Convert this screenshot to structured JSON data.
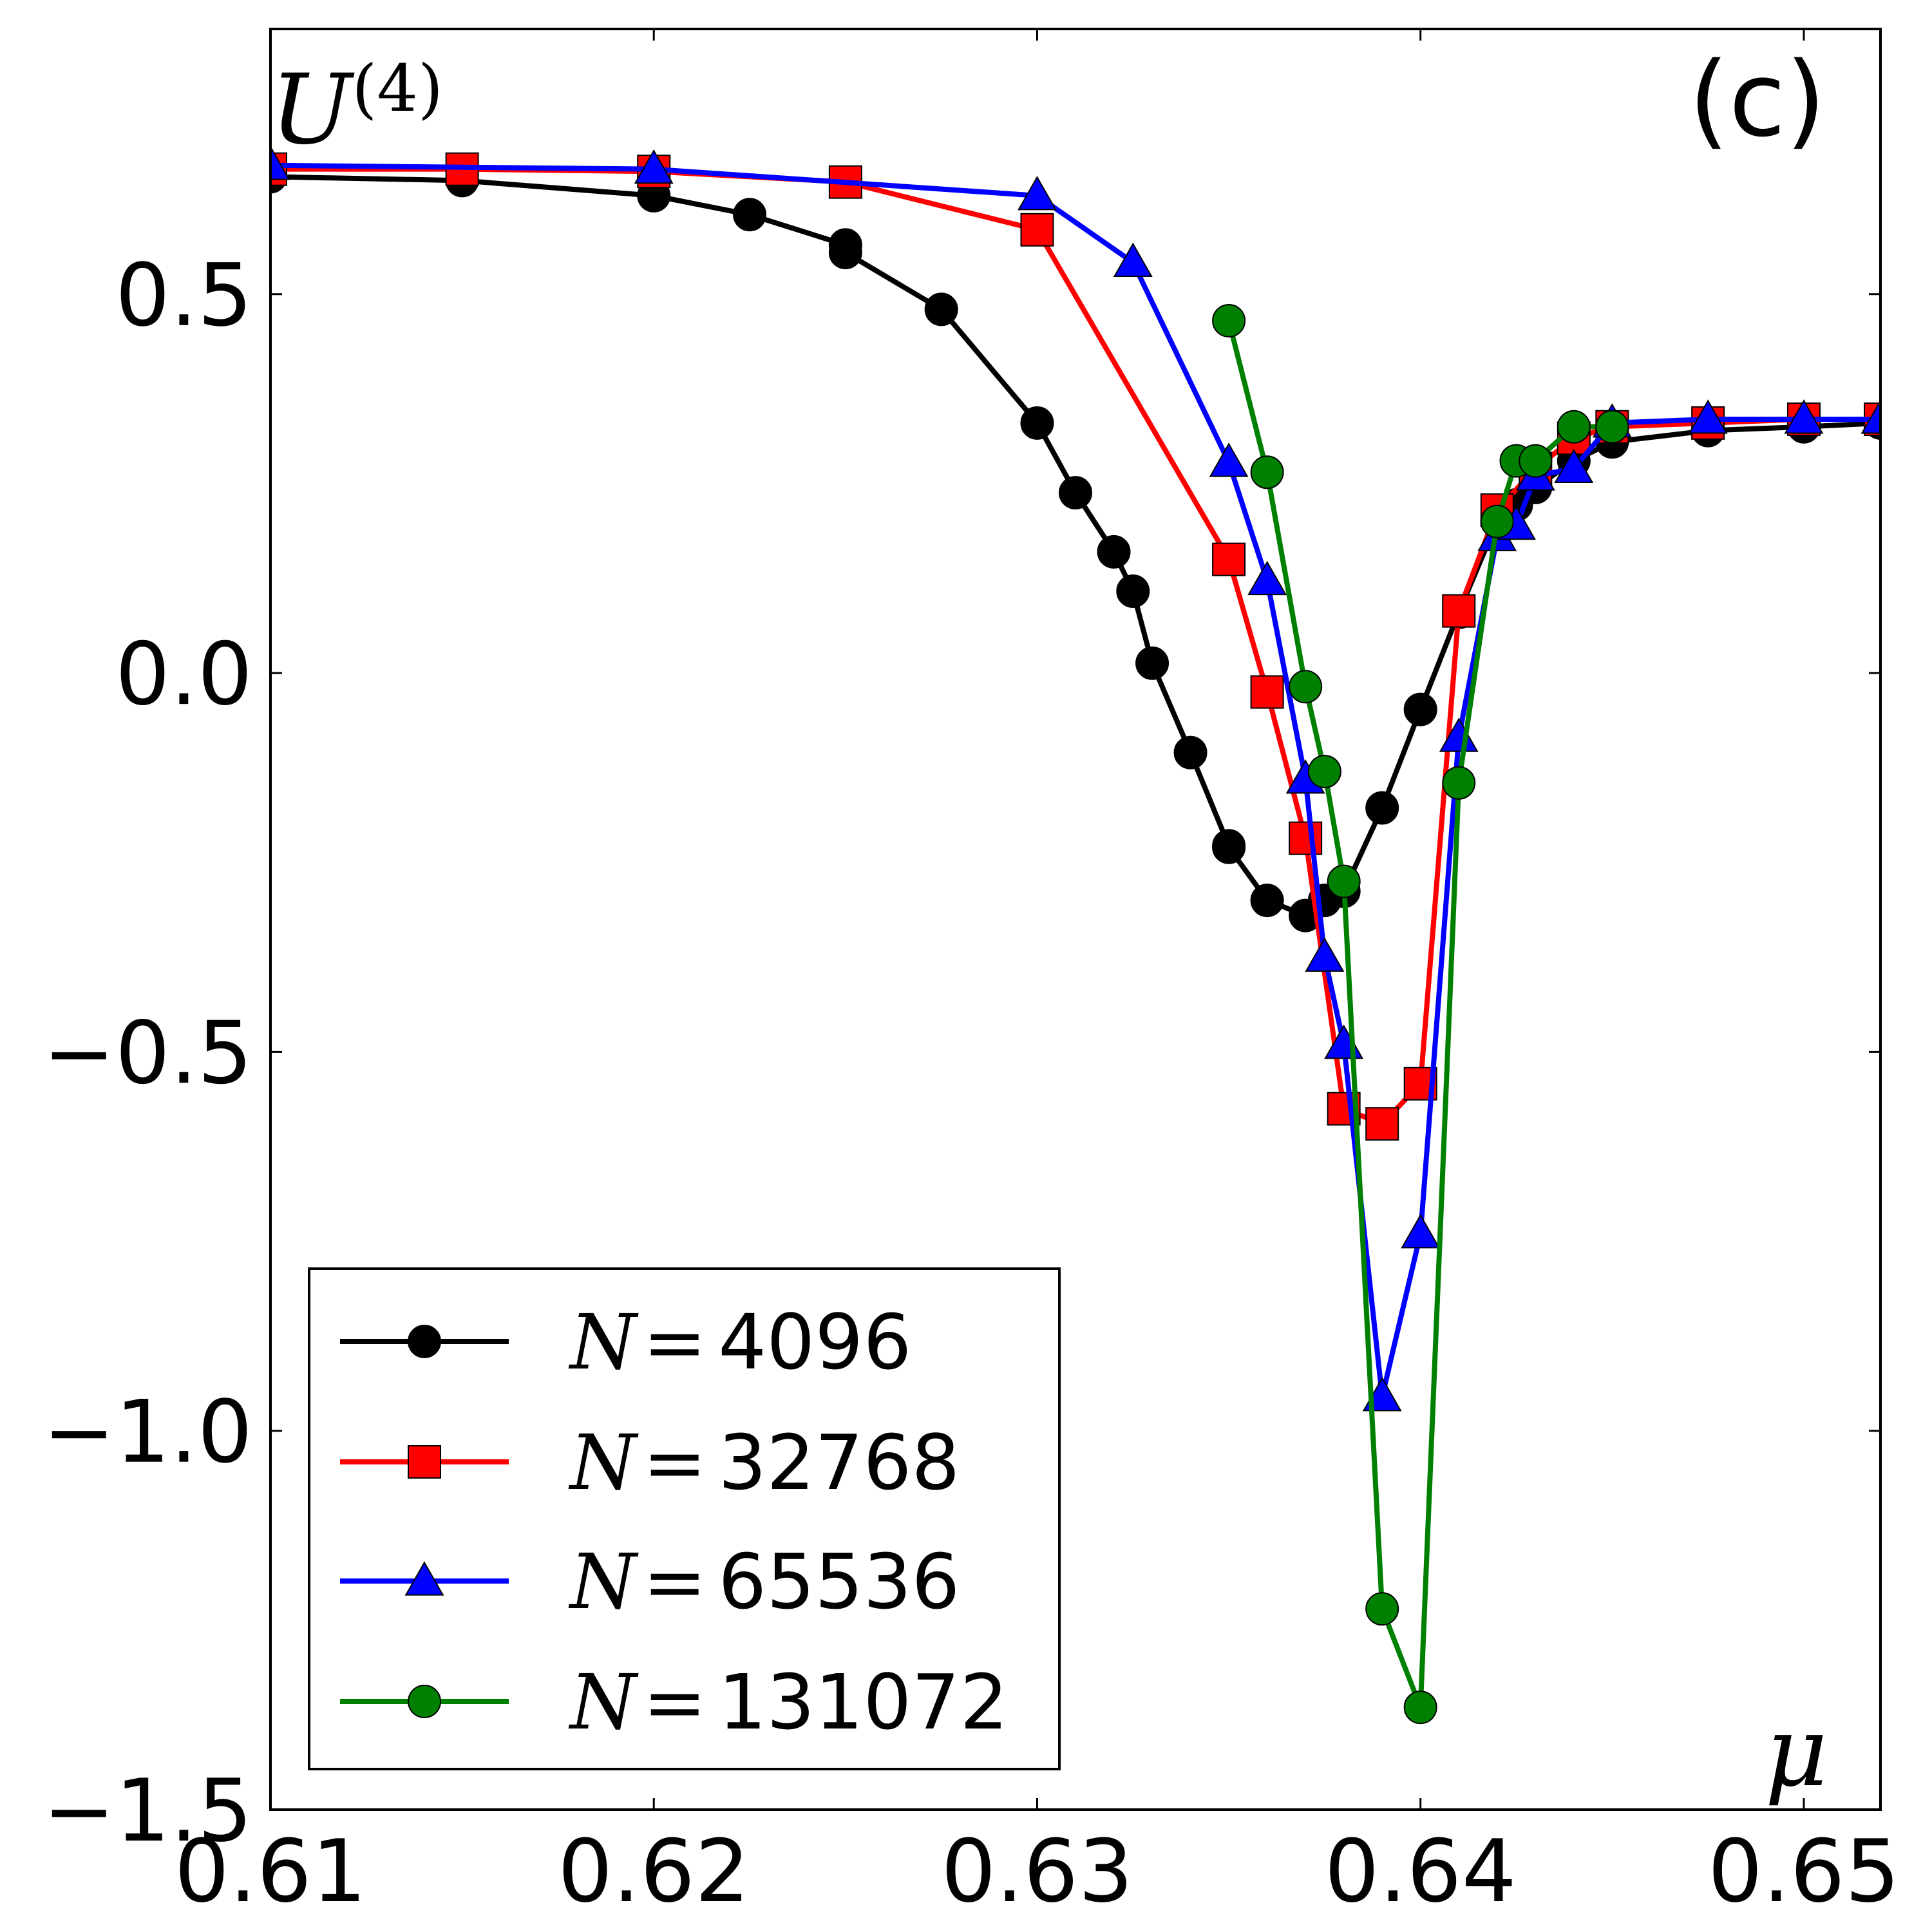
{
  "chart_data": {
    "type": "line",
    "panel_label": "(c)",
    "ylabel": "U",
    "ylabel_superscript": "(4)",
    "xlabel": "μ",
    "xlim": [
      0.61,
      0.652
    ],
    "ylim": [
      -1.5,
      0.85
    ],
    "x_ticks": [
      0.61,
      0.62,
      0.63,
      0.64,
      0.65
    ],
    "x_tick_labels": [
      "0.61",
      "0.62",
      "0.63",
      "0.64",
      "0.65"
    ],
    "y_ticks": [
      -1.5,
      -1.0,
      -0.5,
      0.0,
      0.5
    ],
    "y_tick_labels": [
      "−1.5",
      "−1.0",
      "−0.5",
      "0.0",
      "0.5"
    ],
    "legend_position": "lower-left",
    "series": [
      {
        "name": "N = 4096",
        "legend_var": "N",
        "legend_eq": "=",
        "legend_value": "4096",
        "color": "#000000",
        "marker": "circle",
        "x": [
          0.61,
          0.615,
          0.62,
          0.6225,
          0.625,
          0.625,
          0.6275,
          0.63,
          0.631,
          0.632,
          0.6325,
          0.633,
          0.634,
          0.635,
          0.635,
          0.636,
          0.637,
          0.6375,
          0.638,
          0.639,
          0.64,
          0.641,
          0.642,
          0.6425,
          0.643,
          0.644,
          0.645,
          0.6475,
          0.65,
          0.652
        ],
        "y": [
          0.655,
          0.65,
          0.63,
          0.605,
          0.565,
          0.555,
          0.48,
          0.33,
          0.238,
          0.16,
          0.108,
          0.013,
          -0.105,
          -0.228,
          -0.23,
          -0.3,
          -0.32,
          -0.3,
          -0.288,
          -0.178,
          -0.048,
          0.08,
          0.2,
          0.222,
          0.245,
          0.28,
          0.305,
          0.32,
          0.325,
          0.33
        ]
      },
      {
        "name": "N = 32768",
        "legend_var": "N",
        "legend_eq": "=",
        "legend_value": "32768",
        "color": "#ff0000",
        "marker": "square",
        "x": [
          0.61,
          0.615,
          0.62,
          0.625,
          0.63,
          0.635,
          0.636,
          0.637,
          0.638,
          0.639,
          0.64,
          0.641,
          0.642,
          0.643,
          0.644,
          0.645,
          0.6475,
          0.65,
          0.652
        ],
        "y": [
          0.665,
          0.665,
          0.662,
          0.648,
          0.585,
          0.15,
          -0.025,
          -0.218,
          -0.575,
          -0.595,
          -0.542,
          0.082,
          0.215,
          0.27,
          0.31,
          0.325,
          0.33,
          0.335,
          0.335
        ]
      },
      {
        "name": "N = 65536",
        "legend_var": "N",
        "legend_eq": "=",
        "legend_value": "65536",
        "color": "#0000ff",
        "marker": "triangle",
        "x": [
          0.61,
          0.62,
          0.63,
          0.6325,
          0.635,
          0.636,
          0.637,
          0.6375,
          0.638,
          0.639,
          0.64,
          0.641,
          0.642,
          0.6425,
          0.643,
          0.644,
          0.645,
          0.6475,
          0.65,
          0.652
        ],
        "y": [
          0.67,
          0.665,
          0.63,
          0.542,
          0.278,
          0.122,
          -0.14,
          -0.375,
          -0.49,
          -0.955,
          -0.74,
          -0.085,
          0.18,
          0.195,
          0.26,
          0.27,
          0.33,
          0.335,
          0.335,
          0.335
        ]
      },
      {
        "name": "N = 131072",
        "legend_var": "N",
        "legend_eq": "=",
        "legend_value": "131072",
        "color": "#008000",
        "marker": "circle",
        "x": [
          0.635,
          0.636,
          0.637,
          0.6375,
          0.638,
          0.639,
          0.64,
          0.641,
          0.642,
          0.6425,
          0.643,
          0.644,
          0.645
        ],
        "y": [
          0.465,
          0.265,
          -0.018,
          -0.13,
          -0.275,
          -1.235,
          -1.365,
          -0.145,
          0.2,
          0.28,
          0.28,
          0.325,
          0.325
        ]
      }
    ]
  }
}
